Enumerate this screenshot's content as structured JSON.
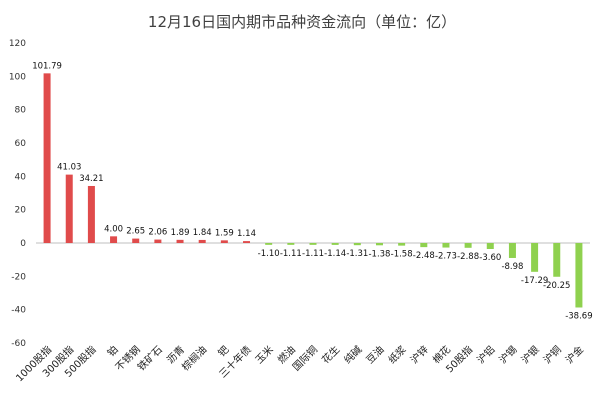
{
  "chart_data": {
    "type": "bar",
    "title": "12月16日国内期市品种资金流向（单位：亿）",
    "xlabel": "",
    "ylabel": "",
    "ylim": [
      -60,
      120
    ],
    "yticks": [
      "120",
      "100",
      "80",
      "60",
      "40",
      "20",
      "0",
      "-20",
      "-40",
      "-60"
    ],
    "grid": false,
    "legend": "none",
    "positive_color": "#e04b4b",
    "negative_color": "#8fd14f",
    "categories": [
      "1000股指",
      "300股指",
      "500股指",
      "铂",
      "不锈钢",
      "铁矿石",
      "沥青",
      "棕榈油",
      "钯",
      "三十年债",
      "玉米",
      "燃油",
      "国际铜",
      "花生",
      "纯碱",
      "豆油",
      "纸浆",
      "沪锌",
      "棉花",
      "50股指",
      "沪铝",
      "沪锡",
      "沪银",
      "沪铜",
      "沪金"
    ],
    "values": [
      101.79,
      41.03,
      34.21,
      4.0,
      2.65,
      2.06,
      1.89,
      1.84,
      1.59,
      1.14,
      -1.1,
      -1.11,
      -1.11,
      -1.14,
      -1.31,
      -1.38,
      -1.58,
      -2.48,
      -2.73,
      -2.88,
      -3.6,
      -8.98,
      -17.29,
      -20.25,
      -38.69
    ],
    "data_labels": [
      "101.79",
      "41.03",
      "34.21",
      "4.00",
      "2.65",
      "2.06",
      "1.89",
      "1.84",
      "1.59",
      "1.14",
      "-1.10",
      "-1.11",
      "-1.11",
      "-1.14",
      "-1.31",
      "-1.38",
      "-1.58",
      "-2.48",
      "-2.73",
      "-2.88",
      "-3.60",
      "-8.98",
      "-17.29",
      "-20.25",
      "-38.69"
    ]
  }
}
